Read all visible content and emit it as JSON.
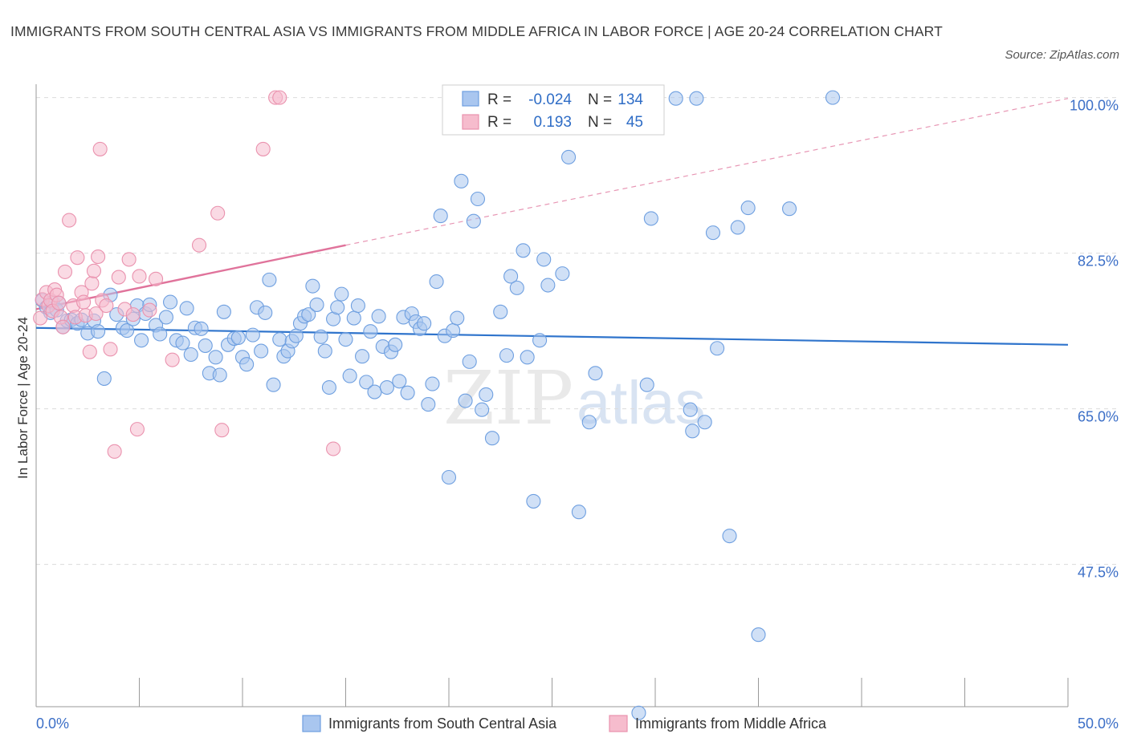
{
  "title": "IMMIGRANTS FROM SOUTH CENTRAL ASIA VS IMMIGRANTS FROM MIDDLE AFRICA IN LABOR FORCE | AGE 20-24 CORRELATION CHART",
  "source": "Source: ZipAtlas.com",
  "watermark": {
    "zip": "ZIP",
    "atlas": "atlas"
  },
  "colors": {
    "blue_fill": "#a9c6ef",
    "blue_stroke": "#6e9fe0",
    "blue_line": "#2f74cc",
    "pink_fill": "#f6bccd",
    "pink_stroke": "#ea92ae",
    "pink_line": "#e0739b",
    "tick_blue": "#3c6fc7",
    "grid": "#dcdcdc"
  },
  "chart_data": {
    "type": "scatter",
    "title": "IMMIGRANTS FROM SOUTH CENTRAL ASIA VS IMMIGRANTS FROM MIDDLE AFRICA IN LABOR FORCE | AGE 20-24 CORRELATION CHART",
    "xlabel": "",
    "ylabel": "In Labor Force | Age 20-24",
    "xlim": [
      0,
      50
    ],
    "ylim": [
      31.5,
      101.5
    ],
    "x_tick_labels": [
      "0.0%",
      "50.0%"
    ],
    "y_ticks": [
      47.5,
      65.0,
      82.5,
      100.0
    ],
    "y_tick_labels": [
      "47.5%",
      "65.0%",
      "82.5%",
      "100.0%"
    ],
    "grid": true,
    "legend_position": "bottom-center",
    "stats_box": {
      "rows": [
        {
          "r_label": "R =",
          "r_value": "-0.024",
          "n_label": "N =",
          "n_value": "134"
        },
        {
          "r_label": "R =",
          "r_value": "0.193",
          "n_label": "N =",
          "n_value": "45"
        }
      ]
    },
    "series": [
      {
        "name": "Immigrants from South Central Asia",
        "color": "#a9c6ef",
        "trend": {
          "x": [
            0,
            50
          ],
          "y": [
            74.1,
            72.2
          ],
          "style": "solid"
        },
        "points": [
          [
            0.3,
            77.2
          ],
          [
            0.5,
            76.4
          ],
          [
            0.7,
            75.8
          ],
          [
            0.8,
            77.0
          ],
          [
            1.0,
            76.1
          ],
          [
            1.1,
            76.9
          ],
          [
            1.3,
            74.2
          ],
          [
            1.5,
            74.9
          ],
          [
            1.7,
            75.0
          ],
          [
            2.0,
            74.6
          ],
          [
            2.2,
            75.0
          ],
          [
            2.5,
            73.5
          ],
          [
            2.8,
            74.9
          ],
          [
            3.0,
            73.7
          ],
          [
            3.3,
            68.4
          ],
          [
            3.6,
            77.8
          ],
          [
            3.9,
            75.6
          ],
          [
            4.2,
            74.1
          ],
          [
            4.4,
            73.8
          ],
          [
            4.7,
            75.1
          ],
          [
            4.9,
            76.6
          ],
          [
            5.1,
            72.7
          ],
          [
            5.3,
            75.7
          ],
          [
            5.5,
            76.7
          ],
          [
            5.8,
            74.4
          ],
          [
            6.0,
            73.4
          ],
          [
            6.3,
            75.3
          ],
          [
            6.5,
            77.0
          ],
          [
            6.8,
            72.7
          ],
          [
            7.1,
            72.4
          ],
          [
            7.3,
            76.3
          ],
          [
            7.5,
            71.1
          ],
          [
            7.7,
            74.1
          ],
          [
            8.0,
            74.0
          ],
          [
            8.2,
            72.1
          ],
          [
            8.4,
            69.0
          ],
          [
            8.7,
            70.8
          ],
          [
            8.9,
            68.8
          ],
          [
            9.1,
            75.9
          ],
          [
            9.3,
            72.2
          ],
          [
            9.6,
            72.9
          ],
          [
            9.8,
            73.0
          ],
          [
            10.0,
            70.8
          ],
          [
            10.2,
            70.0
          ],
          [
            10.5,
            73.3
          ],
          [
            10.7,
            76.4
          ],
          [
            10.9,
            71.5
          ],
          [
            11.1,
            75.8
          ],
          [
            11.3,
            79.5
          ],
          [
            11.5,
            67.7
          ],
          [
            11.8,
            72.8
          ],
          [
            12.0,
            70.9
          ],
          [
            12.2,
            71.5
          ],
          [
            12.4,
            72.6
          ],
          [
            12.6,
            73.2
          ],
          [
            12.8,
            74.6
          ],
          [
            13.0,
            75.4
          ],
          [
            13.2,
            75.6
          ],
          [
            13.4,
            78.8
          ],
          [
            13.6,
            76.7
          ],
          [
            13.8,
            73.1
          ],
          [
            14.0,
            71.5
          ],
          [
            14.2,
            67.4
          ],
          [
            14.4,
            75.1
          ],
          [
            14.6,
            76.4
          ],
          [
            14.8,
            77.9
          ],
          [
            15.0,
            72.8
          ],
          [
            15.2,
            68.7
          ],
          [
            15.4,
            75.2
          ],
          [
            15.6,
            76.6
          ],
          [
            15.8,
            70.9
          ],
          [
            16.0,
            68.0
          ],
          [
            16.2,
            73.7
          ],
          [
            16.4,
            66.9
          ],
          [
            16.6,
            75.4
          ],
          [
            16.8,
            72.0
          ],
          [
            17.0,
            67.4
          ],
          [
            17.2,
            71.4
          ],
          [
            17.4,
            72.2
          ],
          [
            17.6,
            68.1
          ],
          [
            17.8,
            75.3
          ],
          [
            18.0,
            66.8
          ],
          [
            18.2,
            75.7
          ],
          [
            18.4,
            74.8
          ],
          [
            18.6,
            74.0
          ],
          [
            18.8,
            74.6
          ],
          [
            19.0,
            65.5
          ],
          [
            19.2,
            67.8
          ],
          [
            19.4,
            79.3
          ],
          [
            19.6,
            86.7
          ],
          [
            19.8,
            73.2
          ],
          [
            20.0,
            57.3
          ],
          [
            20.2,
            73.8
          ],
          [
            20.4,
            75.2
          ],
          [
            20.6,
            90.6
          ],
          [
            20.8,
            65.9
          ],
          [
            21.0,
            70.3
          ],
          [
            21.2,
            86.1
          ],
          [
            21.4,
            88.6
          ],
          [
            21.6,
            64.9
          ],
          [
            21.8,
            66.6
          ],
          [
            22.1,
            61.7
          ],
          [
            22.5,
            75.9
          ],
          [
            22.8,
            71.0
          ],
          [
            23.0,
            79.9
          ],
          [
            23.3,
            78.6
          ],
          [
            23.6,
            82.8
          ],
          [
            23.8,
            70.8
          ],
          [
            24.1,
            54.6
          ],
          [
            24.4,
            72.7
          ],
          [
            24.6,
            81.8
          ],
          [
            24.8,
            78.9
          ],
          [
            25.5,
            80.2
          ],
          [
            25.8,
            93.3
          ],
          [
            26.3,
            53.4
          ],
          [
            26.8,
            63.5
          ],
          [
            27.1,
            69.0
          ],
          [
            27.7,
            99.9
          ],
          [
            29.6,
            67.7
          ],
          [
            29.8,
            86.4
          ],
          [
            31.7,
            64.9
          ],
          [
            31.8,
            62.5
          ],
          [
            32.0,
            99.9
          ],
          [
            32.4,
            63.5
          ],
          [
            32.8,
            84.8
          ],
          [
            33.0,
            71.8
          ],
          [
            33.6,
            50.7
          ],
          [
            34.0,
            85.4
          ],
          [
            34.5,
            87.6
          ],
          [
            35.0,
            39.6
          ],
          [
            31.0,
            99.9
          ],
          [
            36.5,
            87.5
          ],
          [
            38.6,
            100.0
          ],
          [
            29.2,
            30.8
          ]
        ]
      },
      {
        "name": "Immigrants from Middle Africa",
        "color": "#f6bccd",
        "trend": {
          "x": [
            0,
            15
          ],
          "y": [
            76.2,
            83.4
          ],
          "style": "solid",
          "extension": {
            "x": [
              15,
              50
            ],
            "y": [
              83.4,
              99.9
            ],
            "style": "dashed"
          }
        },
        "points": [
          [
            0.2,
            75.2
          ],
          [
            0.3,
            77.3
          ],
          [
            0.5,
            78.1
          ],
          [
            0.6,
            76.6
          ],
          [
            0.7,
            77.2
          ],
          [
            0.8,
            76.0
          ],
          [
            0.9,
            78.4
          ],
          [
            1.0,
            77.8
          ],
          [
            1.1,
            76.9
          ],
          [
            1.2,
            75.3
          ],
          [
            1.3,
            74.2
          ],
          [
            1.4,
            80.4
          ],
          [
            1.6,
            86.2
          ],
          [
            1.8,
            76.6
          ],
          [
            1.9,
            75.3
          ],
          [
            2.0,
            82.0
          ],
          [
            2.2,
            78.1
          ],
          [
            2.3,
            77.0
          ],
          [
            2.4,
            75.5
          ],
          [
            2.6,
            71.4
          ],
          [
            2.7,
            79.1
          ],
          [
            2.8,
            80.5
          ],
          [
            2.9,
            75.7
          ],
          [
            3.0,
            82.1
          ],
          [
            3.1,
            94.2
          ],
          [
            3.2,
            77.2
          ],
          [
            3.4,
            76.6
          ],
          [
            3.6,
            71.7
          ],
          [
            3.8,
            60.2
          ],
          [
            4.0,
            79.8
          ],
          [
            4.3,
            76.2
          ],
          [
            4.5,
            81.8
          ],
          [
            4.7,
            75.6
          ],
          [
            4.9,
            62.7
          ],
          [
            5.0,
            79.9
          ],
          [
            5.5,
            76.1
          ],
          [
            5.8,
            79.6
          ],
          [
            6.6,
            70.5
          ],
          [
            7.9,
            83.4
          ],
          [
            8.8,
            87.0
          ],
          [
            9.0,
            62.6
          ],
          [
            11.0,
            94.2
          ],
          [
            11.6,
            100.0
          ],
          [
            11.8,
            100.0
          ],
          [
            14.4,
            60.5
          ]
        ]
      }
    ]
  },
  "legend": {
    "blue_label": "Immigrants from South Central Asia",
    "pink_label": "Immigrants from Middle Africa"
  }
}
